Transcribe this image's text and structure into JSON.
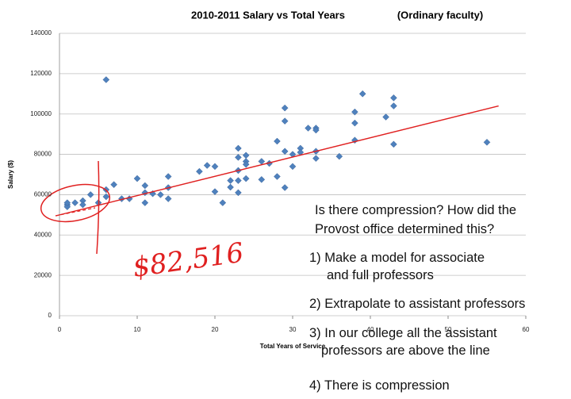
{
  "chart_data": {
    "type": "scatter",
    "title": "2010-2011 Salary vs Total Years",
    "subtitle": "(Ordinary faculty)",
    "x_label": "Total Years of Service",
    "y_label": "Salary ($)",
    "xlim": [
      0,
      60
    ],
    "xticks": [
      0,
      10,
      20,
      30,
      40,
      50,
      60
    ],
    "ylim": [
      0,
      140000
    ],
    "yticks": [
      0,
      20000,
      40000,
      60000,
      80000,
      100000,
      120000,
      140000
    ],
    "grid": true,
    "series": [
      {
        "name": "Salary",
        "color": "#4f81bd",
        "x": [
          1,
          1,
          1,
          2,
          3,
          3,
          4,
          5,
          6,
          6,
          6,
          7,
          8,
          9,
          10,
          11,
          11,
          11,
          12,
          13,
          14,
          14,
          14,
          18,
          19,
          20,
          20,
          21,
          22,
          22,
          23,
          23,
          23,
          23,
          23,
          24,
          24,
          24,
          24,
          26,
          26,
          27,
          28,
          28,
          29,
          29,
          29,
          29,
          30,
          30,
          31,
          31,
          32,
          33,
          33,
          33,
          33,
          36,
          38,
          38,
          38,
          39,
          42,
          43,
          43,
          43,
          55
        ],
        "values": [
          55000,
          54000,
          56000,
          56000,
          57000,
          55000,
          60000,
          56000,
          59000,
          62500,
          117000,
          65000,
          58000,
          58000,
          68000,
          64500,
          61000,
          56000,
          60500,
          60000,
          69000,
          63500,
          58000,
          71500,
          74500,
          74000,
          61500,
          56000,
          67000,
          63700,
          78500,
          83000,
          72000,
          67000,
          61000,
          79500,
          76500,
          75000,
          68000,
          67500,
          76500,
          75500,
          86500,
          69000,
          103000,
          96500,
          81500,
          63500,
          74000,
          80000,
          83000,
          81000,
          93000,
          93000,
          92000,
          81500,
          78000,
          79000,
          101000,
          95500,
          87000,
          110000,
          98500,
          108000,
          104000,
          85000,
          86000
        ]
      }
    ],
    "trendline": {
      "color": "#e02020",
      "x": [
        -0.5,
        56.5
      ],
      "values": [
        49500,
        104000
      ]
    },
    "annotations": [
      {
        "text": "$82,516"
      },
      {
        "text": "Is there compression? How did the"
      },
      {
        "text": "Provost office determined this?"
      },
      {
        "text": "1)  Make a model for associate"
      },
      {
        "text": "and full professors"
      },
      {
        "text": "2) Extrapolate to assistant professors"
      },
      {
        "text": "3) In our college all the assistant"
      },
      {
        "text": "professors are above the line"
      },
      {
        "text": "4) There is compression"
      }
    ]
  }
}
